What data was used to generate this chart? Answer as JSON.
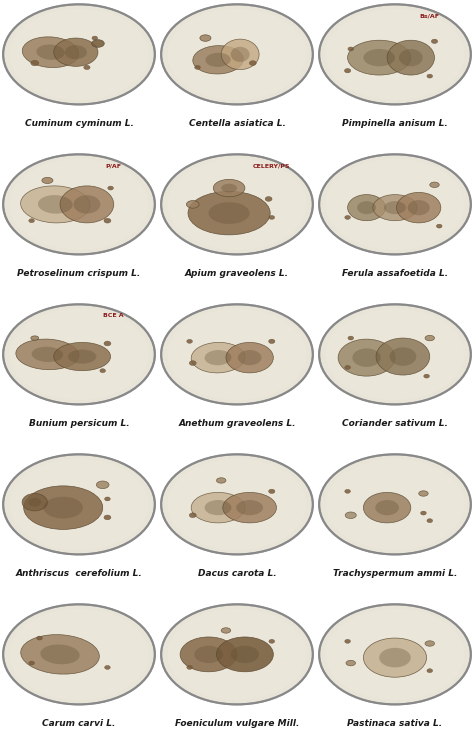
{
  "grid_rows": 5,
  "grid_cols": 3,
  "fig_width": 4.74,
  "fig_height": 7.5,
  "background_color": "#ffffff",
  "cell_labels": [
    [
      "Cuminum cyminum L.",
      "Centella asiatica L.",
      "Pimpinella anisum L."
    ],
    [
      "Petroselinum crispum L.",
      "Apium graveolens L.",
      "Ferula assafoetida L."
    ],
    [
      "Bunium persicum L.",
      "Anethum graveolens L.",
      "Coriander sativum L."
    ],
    [
      "Anthriscus  cerefolium L.",
      "Dacus carota L.",
      "Trachyspermum ammi L."
    ],
    [
      "Carum carvi L.",
      "Foeniculum vulgare Mill.",
      "Pastinaca sativa L."
    ]
  ],
  "label_fontsize": 6.5,
  "agar_color": "#e8e4d8",
  "agar_color2": "#ddd8c8",
  "dish_border": "#b0b0b0",
  "dish_border2": "#888888",
  "fungal_color1": "#8b7355",
  "fungal_color2": "#a08060",
  "fungal_color3": "#6b5a3e",
  "fungal_color4": "#c4a882",
  "fungal_dark": "#5c4a30",
  "annotation_color": "#8b1a1a",
  "small_dot_color": "#7a5c3c"
}
